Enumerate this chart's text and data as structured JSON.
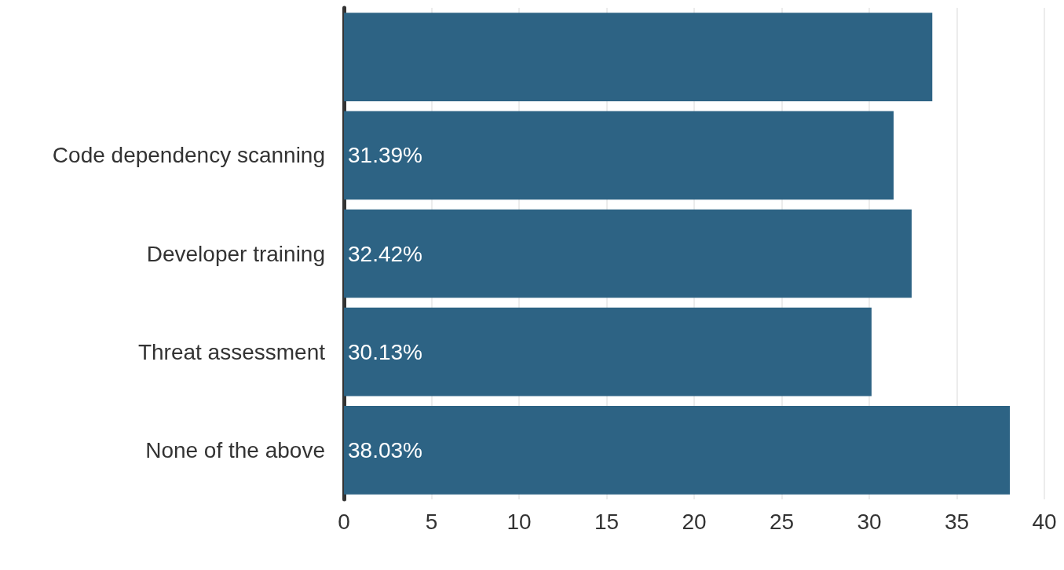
{
  "chart_data": {
    "type": "bar",
    "orientation": "horizontal",
    "categories": [
      null,
      "Code dependency scanning",
      "Developer training",
      "Threat assessment",
      "None of the above"
    ],
    "values": [
      33.6,
      31.39,
      32.42,
      30.13,
      38.03
    ],
    "value_labels": [
      null,
      "31.39%",
      "32.42%",
      "30.13%",
      "38.03%"
    ],
    "color": "#2d6384",
    "xlim": [
      0,
      40
    ],
    "xticks": [
      0,
      5,
      10,
      15,
      20,
      25,
      30,
      35,
      40
    ],
    "grid": "x"
  }
}
